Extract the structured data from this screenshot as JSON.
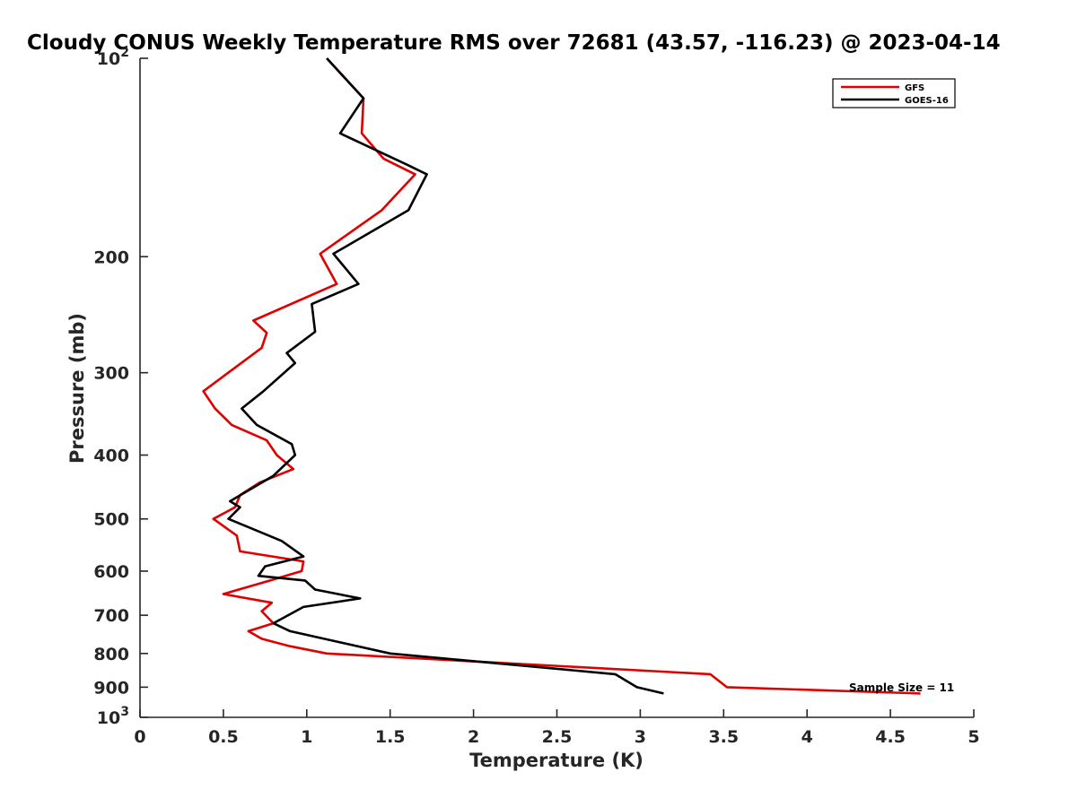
{
  "chart_data": {
    "type": "line",
    "title": "Cloudy CONUS Weekly Temperature RMS over 72681 (43.57, -116.23) @ 2023-04-14",
    "xlabel": "Temperature (K)",
    "ylabel": "Pressure (mb)",
    "xlim": [
      0,
      5
    ],
    "ylim": [
      100,
      1000
    ],
    "y_scale": "log",
    "y_reversed": true,
    "grid": false,
    "legend_position": "top-right",
    "x_ticks": [
      "0",
      "0.5",
      "1",
      "1.5",
      "2",
      "2.5",
      "3",
      "3.5",
      "4",
      "4.5",
      "5"
    ],
    "y_ticks": [
      {
        "value": 100,
        "label_base": "10",
        "label_exp": "2"
      },
      {
        "value": 200,
        "label_base": "200",
        "label_exp": ""
      },
      {
        "value": 300,
        "label_base": "300",
        "label_exp": ""
      },
      {
        "value": 400,
        "label_base": "400",
        "label_exp": ""
      },
      {
        "value": 500,
        "label_base": "500",
        "label_exp": ""
      },
      {
        "value": 600,
        "label_base": "600",
        "label_exp": ""
      },
      {
        "value": 700,
        "label_base": "700",
        "label_exp": ""
      },
      {
        "value": 800,
        "label_base": "800",
        "label_exp": ""
      },
      {
        "value": 900,
        "label_base": "900",
        "label_exp": ""
      },
      {
        "value": 1000,
        "label_base": "10",
        "label_exp": "3"
      }
    ],
    "annotation": "Sample Size = 11",
    "series": [
      {
        "name": "GFS",
        "color": "#e00000",
        "points": [
          [
            1.12,
            100
          ],
          [
            1.34,
            115
          ],
          [
            1.33,
            130
          ],
          [
            1.46,
            142
          ],
          [
            1.65,
            150
          ],
          [
            1.45,
            170
          ],
          [
            1.08,
            198
          ],
          [
            1.18,
            220
          ],
          [
            0.68,
            250
          ],
          [
            0.76,
            261
          ],
          [
            0.73,
            275
          ],
          [
            0.38,
            320
          ],
          [
            0.45,
            340
          ],
          [
            0.55,
            360
          ],
          [
            0.76,
            380
          ],
          [
            0.82,
            400
          ],
          [
            0.92,
            420
          ],
          [
            0.72,
            440
          ],
          [
            0.6,
            460
          ],
          [
            0.57,
            480
          ],
          [
            0.44,
            500
          ],
          [
            0.58,
            530
          ],
          [
            0.6,
            560
          ],
          [
            0.98,
            580
          ],
          [
            0.97,
            600
          ],
          [
            0.78,
            620
          ],
          [
            0.5,
            650
          ],
          [
            0.79,
            670
          ],
          [
            0.73,
            690
          ],
          [
            0.8,
            720
          ],
          [
            0.65,
            740
          ],
          [
            0.73,
            760
          ],
          [
            0.9,
            780
          ],
          [
            1.12,
            800
          ],
          [
            3.42,
            860
          ],
          [
            3.52,
            900
          ],
          [
            4.68,
            920
          ]
        ]
      },
      {
        "name": "GOES-16",
        "color": "#000000",
        "points": [
          [
            1.12,
            100
          ],
          [
            1.34,
            115
          ],
          [
            1.2,
            130
          ],
          [
            1.6,
            145
          ],
          [
            1.72,
            150
          ],
          [
            1.61,
            170
          ],
          [
            1.16,
            198
          ],
          [
            1.31,
            220
          ],
          [
            1.03,
            236
          ],
          [
            1.05,
            260
          ],
          [
            0.88,
            280
          ],
          [
            0.93,
            290
          ],
          [
            0.74,
            320
          ],
          [
            0.61,
            340
          ],
          [
            0.7,
            360
          ],
          [
            0.91,
            385
          ],
          [
            0.93,
            400
          ],
          [
            0.8,
            430
          ],
          [
            0.54,
            470
          ],
          [
            0.6,
            480
          ],
          [
            0.53,
            500
          ],
          [
            0.85,
            540
          ],
          [
            0.98,
            570
          ],
          [
            0.75,
            590
          ],
          [
            0.71,
            610
          ],
          [
            0.99,
            620
          ],
          [
            1.05,
            640
          ],
          [
            1.32,
            660
          ],
          [
            0.98,
            680
          ],
          [
            0.8,
            720
          ],
          [
            0.9,
            740
          ],
          [
            1.5,
            800
          ],
          [
            2.85,
            860
          ],
          [
            2.98,
            900
          ],
          [
            3.14,
            920
          ]
        ]
      }
    ]
  }
}
